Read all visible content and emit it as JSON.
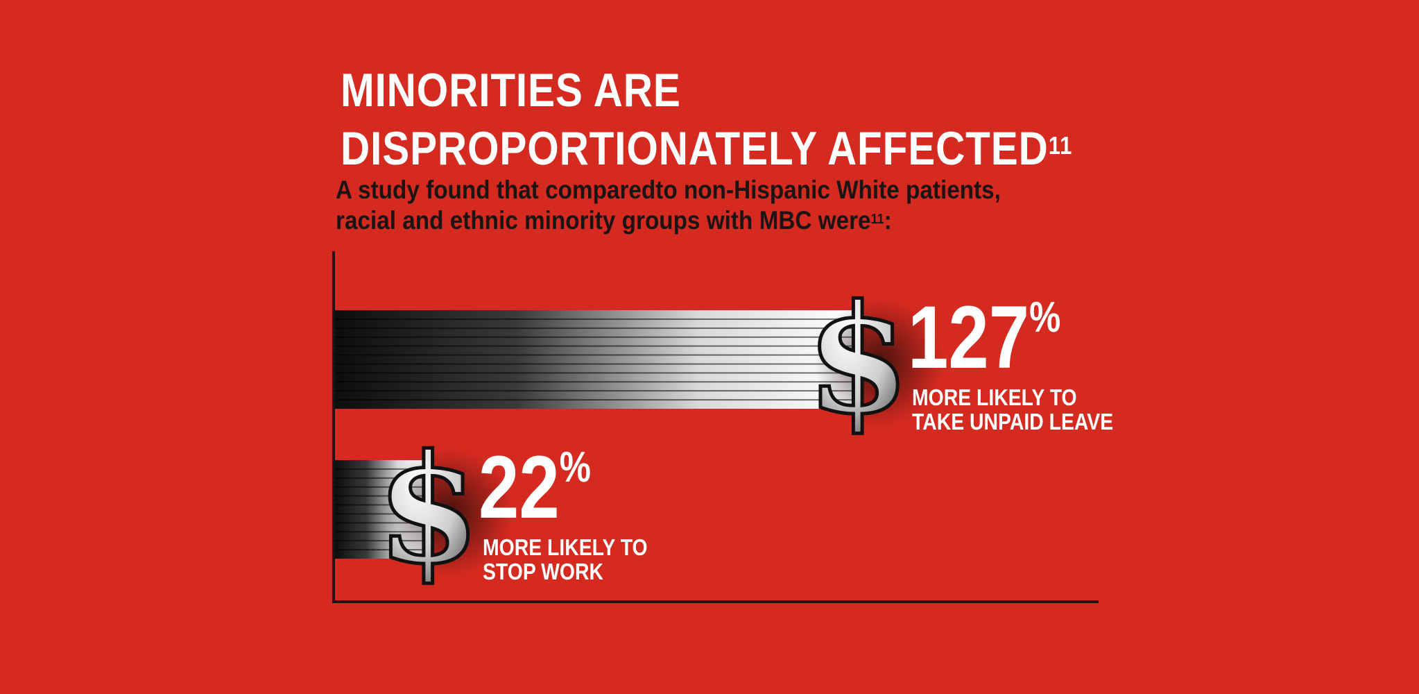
{
  "header": {
    "title_line1": "MINORITIES ARE",
    "title_line2": "DISPROPORTIONATELY AFFECTED",
    "title_ref": "11",
    "subtitle_line1": "A study found that comparedto non-Hispanic White patients,",
    "subtitle_line2": "racial and ethnic minority groups with MBC were",
    "subtitle_ref": "11",
    "subtitle_end": ":"
  },
  "colors": {
    "background": "#d52a20",
    "text": "#ffffff",
    "subtitle": "#1a1414",
    "axis": "#1a1414",
    "bar": "#111111"
  },
  "chart_data": {
    "type": "bar",
    "orientation": "horizontal",
    "grid": false,
    "legend": "none",
    "xlim": [
      0,
      180
    ],
    "categories": [
      "MORE LIKELY TO TAKE UNPAID LEAVE",
      "MORE LIKELY TO STOP WORK"
    ],
    "values": [
      127,
      22
    ],
    "unit": "%",
    "bars": [
      {
        "value_label": "127",
        "unit": "%",
        "label_line1": "MORE LIKELY TO",
        "label_line2": "TAKE UNPAID LEAVE",
        "icon": "dollar-sign-icon"
      },
      {
        "value_label": "22",
        "unit": "%",
        "label_line1": "MORE LIKELY TO",
        "label_line2": "STOP WORK",
        "icon": "dollar-sign-icon"
      }
    ]
  }
}
